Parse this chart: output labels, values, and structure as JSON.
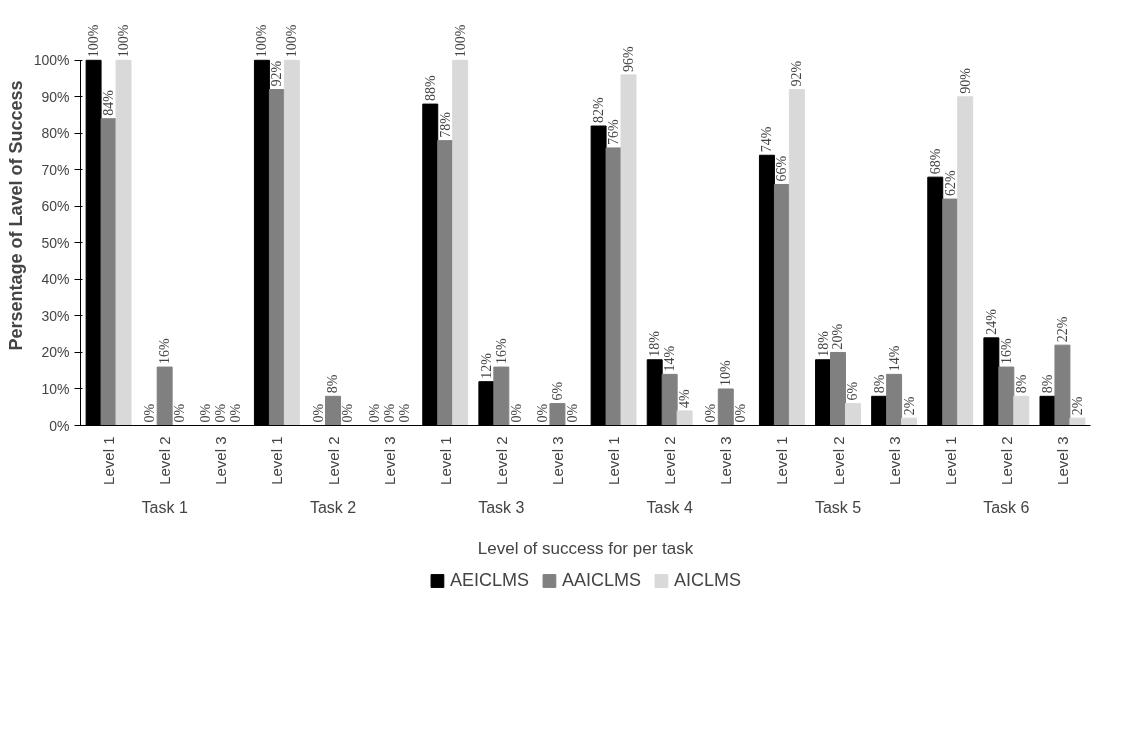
{
  "chart_data": {
    "type": "bar",
    "xlabel": "Level of success for per task",
    "ylabel": "Persentage of Lavel of Success",
    "categories": [
      "Level 1",
      "Level 2",
      "Level 3",
      "Level 1",
      "Level 2",
      "Level 3",
      "Level 1",
      "Level 2",
      "Level 3",
      "Level 1",
      "Level 2",
      "Level 3",
      "Level 1",
      "Level 2",
      "Level 3",
      "Level 1",
      "Level 2",
      "Level 3"
    ],
    "annotations": [
      "Task 1",
      "Task 2",
      "Task 3",
      "Task 4",
      "Task 5",
      "Task 6"
    ],
    "series": [
      {
        "name": "AEICLMS",
        "color": "#000000",
        "values": [
          100,
          0,
          0,
          100,
          0,
          0,
          88,
          12,
          0,
          82,
          18,
          0,
          74,
          18,
          8,
          68,
          24,
          8
        ],
        "value_labels": [
          "100%",
          "0%",
          "0%",
          "100%",
          "0%",
          "0%",
          "88%",
          "12%",
          "0%",
          "82%",
          "18%",
          "0%",
          "74%",
          "18%",
          "8%",
          "68%",
          "24%",
          "8%"
        ]
      },
      {
        "name": "AAICLMS",
        "color": "#808080",
        "values": [
          84,
          16,
          0,
          92,
          8,
          0,
          78,
          16,
          6,
          76,
          14,
          10,
          66,
          20,
          14,
          62,
          16,
          22
        ],
        "value_labels": [
          "84%",
          "16%",
          "0%",
          "92%",
          "8%",
          "0%",
          "78%",
          "16%",
          "6%",
          "76%",
          "14%",
          "10%",
          "66%",
          "20%",
          "14%",
          "62%",
          "16%",
          "22%"
        ]
      },
      {
        "name": "AICLMS",
        "color": "#d9d9d9",
        "values": [
          100,
          0,
          0,
          100,
          0,
          0,
          100,
          0,
          0,
          96,
          4,
          0,
          92,
          6,
          2,
          90,
          8,
          2
        ],
        "value_labels": [
          "100%",
          "0%",
          "0%",
          "100%",
          "0%",
          "0%",
          "100%",
          "0%",
          "0%",
          "96%",
          "4%",
          "0%",
          "92%",
          "6%",
          "2%",
          "90%",
          "8%",
          "2%"
        ]
      }
    ],
    "ylim": [
      0,
      100
    ],
    "yticks": [
      {
        "value": 0,
        "label": "0%"
      },
      {
        "value": 10,
        "label": "10%"
      },
      {
        "value": 20,
        "label": "20%"
      },
      {
        "value": 30,
        "label": "30%"
      },
      {
        "value": 40,
        "label": "40%"
      },
      {
        "value": 50,
        "label": "50%"
      },
      {
        "value": 60,
        "label": "60%"
      },
      {
        "value": 70,
        "label": "70%"
      },
      {
        "value": 80,
        "label": "80%"
      },
      {
        "value": 90,
        "label": "90%"
      },
      {
        "value": 100,
        "label": "100%"
      }
    ],
    "grid": false,
    "legend": "bottom"
  }
}
